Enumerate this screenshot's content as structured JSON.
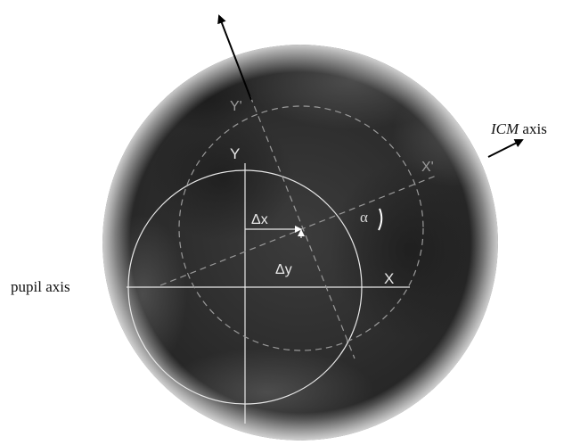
{
  "labels": {
    "pupil_axis": "pupil axis",
    "icm_italic": "ICM",
    "icm_suffix": " axis",
    "Y": "Y",
    "Y_prime": "Y'",
    "X": "X",
    "X_prime": "X'",
    "dx": "Δx",
    "dy": "Δy",
    "alpha": "α"
  },
  "colors": {
    "lens_dark": "#262626",
    "lens_mid": "#4a4a4a",
    "line_white": "#e8e8e8",
    "line_dashed": "#9a9a9a",
    "arrow": "#000000",
    "text_dark": "#111111"
  }
}
